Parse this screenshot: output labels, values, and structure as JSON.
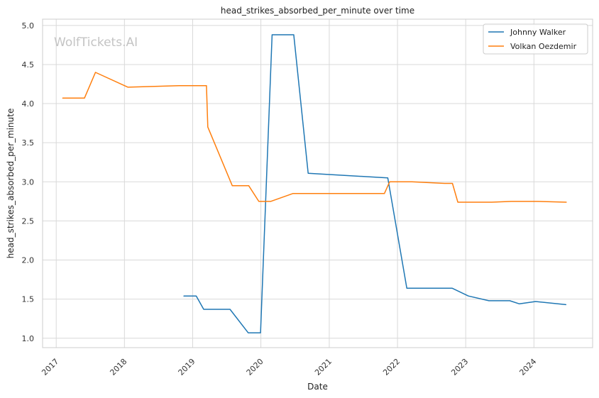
{
  "chart_data": {
    "type": "line",
    "title": "head_strikes_absorbed_per_minute over time",
    "xlabel": "Date",
    "ylabel": "head_strikes_absorbed_per_minute",
    "watermark": "WolfTickets.AI",
    "xlim": [
      "2016-10-20",
      "2024-11-10"
    ],
    "ylim": [
      0.88,
      5.08
    ],
    "x_ticks": [
      "2017",
      "2018",
      "2019",
      "2020",
      "2021",
      "2022",
      "2023",
      "2024"
    ],
    "y_ticks": [
      "1.0",
      "1.5",
      "2.0",
      "2.5",
      "3.0",
      "3.5",
      "4.0",
      "4.5",
      "5.0"
    ],
    "grid": true,
    "legend_position": "top-right",
    "series": [
      {
        "name": "Johnny Walker",
        "color": "#1f77b4",
        "points": [
          [
            "2018-11-15",
            1.54
          ],
          [
            "2019-01-20",
            1.54
          ],
          [
            "2019-03-01",
            1.37
          ],
          [
            "2019-07-20",
            1.37
          ],
          [
            "2019-10-25",
            1.07
          ],
          [
            "2019-12-30",
            1.07
          ],
          [
            "2020-03-01",
            4.88
          ],
          [
            "2020-06-25",
            4.88
          ],
          [
            "2020-09-10",
            3.11
          ],
          [
            "2021-11-10",
            3.05
          ],
          [
            "2022-02-20",
            1.64
          ],
          [
            "2022-08-25",
            1.64
          ],
          [
            "2022-10-20",
            1.64
          ],
          [
            "2023-01-15",
            1.54
          ],
          [
            "2023-05-05",
            1.48
          ],
          [
            "2023-08-25",
            1.48
          ],
          [
            "2023-10-15",
            1.44
          ],
          [
            "2024-01-10",
            1.47
          ],
          [
            "2024-06-20",
            1.43
          ]
        ]
      },
      {
        "name": "Volkan Oezdemir",
        "color": "#ff7f0e",
        "points": [
          [
            "2017-02-05",
            4.07
          ],
          [
            "2017-06-01",
            4.07
          ],
          [
            "2017-07-30",
            4.4
          ],
          [
            "2018-01-20",
            4.21
          ],
          [
            "2018-10-20",
            4.23
          ],
          [
            "2019-03-16",
            4.23
          ],
          [
            "2019-03-23",
            3.7
          ],
          [
            "2019-08-01",
            2.95
          ],
          [
            "2019-10-28",
            2.95
          ],
          [
            "2019-12-21",
            2.75
          ],
          [
            "2020-02-22",
            2.75
          ],
          [
            "2020-06-20",
            2.85
          ],
          [
            "2021-10-23",
            2.85
          ],
          [
            "2021-11-20",
            3.0
          ],
          [
            "2022-03-19",
            3.0
          ],
          [
            "2022-09-10",
            2.98
          ],
          [
            "2022-10-22",
            2.98
          ],
          [
            "2022-11-20",
            2.74
          ],
          [
            "2023-05-20",
            2.74
          ],
          [
            "2023-09-02",
            2.75
          ],
          [
            "2024-01-20",
            2.75
          ],
          [
            "2024-06-22",
            2.74
          ]
        ]
      }
    ]
  }
}
